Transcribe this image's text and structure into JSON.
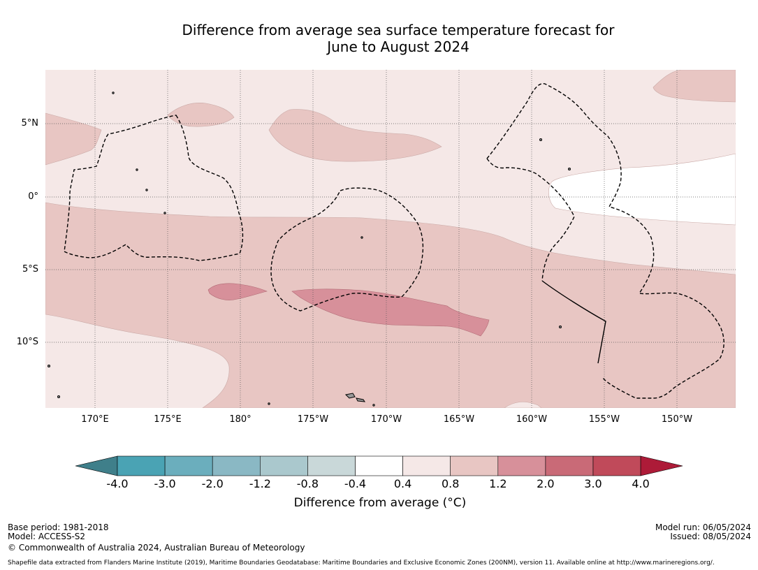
{
  "title": {
    "line1": "Difference from average sea surface temperature forecast for",
    "line2": "June to August 2024"
  },
  "map": {
    "lat_ticks": [
      "5°N",
      "0°",
      "5°S",
      "10°S"
    ],
    "lon_ticks": [
      "170°E",
      "175°E",
      "180°",
      "175°W",
      "170°W",
      "165°W",
      "160°W",
      "155°W",
      "150°W"
    ],
    "lat_range": [
      -14.5,
      8.6
    ],
    "lon_range": [
      166.6,
      214.0
    ],
    "colors": {
      "band_0.4_0.8": "#f5e8e7",
      "band_0.8_1.2": "#e8c6c3",
      "band_1.2_2.0": "#d7909a",
      "band_-0.4_0.4": "#ffffff",
      "boundary_line": "#000000"
    }
  },
  "colorbar": {
    "title": "Difference from average (°C)",
    "tick_labels": [
      "-4.0",
      "-3.0",
      "-2.0",
      "-1.2",
      "-0.8",
      "-0.4",
      "0.4",
      "0.8",
      "1.2",
      "2.0",
      "3.0",
      "4.0"
    ],
    "colors": [
      "#3f7f8a",
      "#4aa3b4",
      "#6baebd",
      "#8ab8c4",
      "#aac8cd",
      "#c9d8d9",
      "#ffffff",
      "#f5e8e7",
      "#e8c6c3",
      "#d7909a",
      "#c96a77",
      "#c04a5a",
      "#ad1b38"
    ]
  },
  "footer": {
    "base_period": "Base period: 1981-2018",
    "model": "Model: ACCESS-S2",
    "copyright": "© Commonwealth of Australia 2024, Australian Bureau of Meteorology",
    "model_run": "Model run: 06/05/2024",
    "issued": "Issued: 08/05/2024",
    "shapefile_note": "Shapefile data extracted from Flanders Marine Institute (2019), Maritime Boundaries Geodatabase: Maritime Boundaries and Exclusive Economic Zones (200NM), version 11. Available online at http://www.marineregions.org/."
  }
}
